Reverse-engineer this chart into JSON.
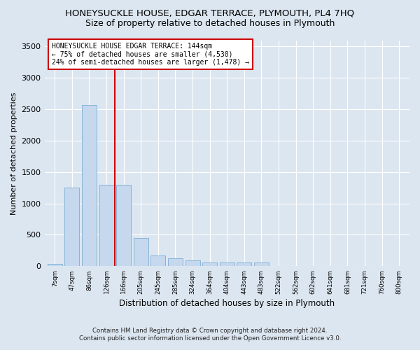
{
  "title": "HONEYSUCKLE HOUSE, EDGAR TERRACE, PLYMOUTH, PL4 7HQ",
  "subtitle": "Size of property relative to detached houses in Plymouth",
  "xlabel": "Distribution of detached houses by size in Plymouth",
  "ylabel": "Number of detached properties",
  "footnote1": "Contains HM Land Registry data © Crown copyright and database right 2024.",
  "footnote2": "Contains public sector information licensed under the Open Government Licence v3.0.",
  "categories": [
    "7sqm",
    "47sqm",
    "86sqm",
    "126sqm",
    "166sqm",
    "205sqm",
    "245sqm",
    "285sqm",
    "324sqm",
    "364sqm",
    "404sqm",
    "443sqm",
    "483sqm",
    "522sqm",
    "562sqm",
    "602sqm",
    "641sqm",
    "681sqm",
    "721sqm",
    "760sqm",
    "800sqm"
  ],
  "values": [
    40,
    1250,
    2570,
    1300,
    1300,
    450,
    175,
    130,
    90,
    60,
    55,
    55,
    55,
    5,
    2,
    2,
    1,
    1,
    1,
    1,
    0
  ],
  "bar_color": "#c5d8ee",
  "bar_edge_color": "#7aadd4",
  "vline_x": 3.5,
  "vline_color": "#cc0000",
  "annotation_text": "HONEYSUCKLE HOUSE EDGAR TERRACE: 144sqm\n← 75% of detached houses are smaller (4,530)\n24% of semi-detached houses are larger (1,478) →",
  "annotation_box_color": "#ffffff",
  "annotation_box_edge": "#cc0000",
  "ylim": [
    0,
    3600
  ],
  "yticks": [
    0,
    500,
    1000,
    1500,
    2000,
    2500,
    3000,
    3500
  ],
  "bg_color": "#dce6f0",
  "plot_bg_color": "#dce6f0",
  "title_fontsize": 9.5,
  "subtitle_fontsize": 9,
  "grid_color": "#ffffff"
}
